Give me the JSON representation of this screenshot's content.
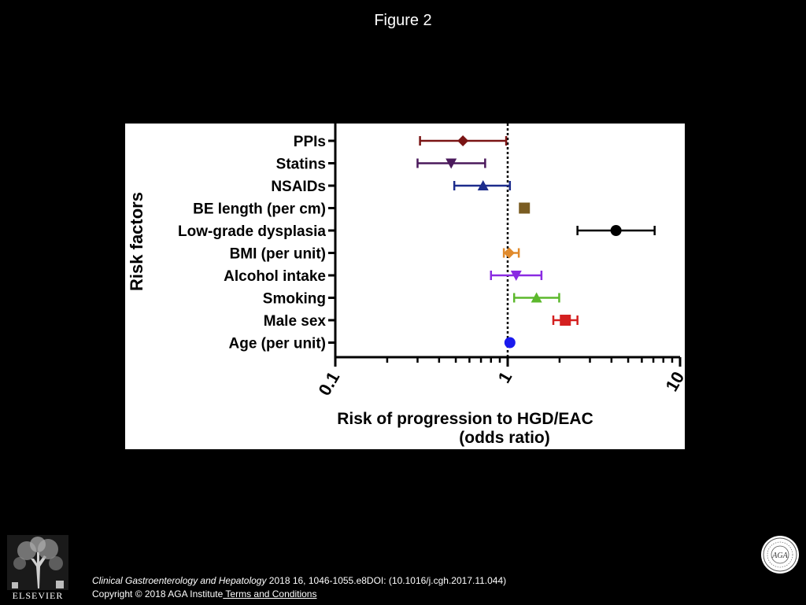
{
  "figure_title": "Figure 2",
  "chart_data": {
    "type": "forest",
    "ylabel": "Risk factors",
    "xlabel_line1": "Risk of progression to HGD/EAC",
    "xlabel_line2": "(odds ratio)",
    "xscale": "log",
    "xlim": [
      0.1,
      10
    ],
    "xticks": [
      {
        "value": 0.1,
        "label": "0.1"
      },
      {
        "value": 1,
        "label": "1"
      },
      {
        "value": 10,
        "label": "10"
      }
    ],
    "reference_line": 1,
    "rows": [
      {
        "label": "PPIs",
        "estimate": 0.55,
        "ci_low": 0.31,
        "ci_high": 0.98,
        "marker": "diamond",
        "color": "#7a1414"
      },
      {
        "label": "Statins",
        "estimate": 0.47,
        "ci_low": 0.3,
        "ci_high": 0.74,
        "marker": "triangle-down",
        "color": "#4b1a5c"
      },
      {
        "label": "NSAIDs",
        "estimate": 0.72,
        "ci_low": 0.49,
        "ci_high": 1.03,
        "marker": "triangle-up",
        "color": "#1c2c8c"
      },
      {
        "label": "BE length (per cm)",
        "estimate": 1.25,
        "ci_low": 1.18,
        "ci_high": 1.32,
        "marker": "square",
        "color": "#7a5c22"
      },
      {
        "label": "Low-grade dysplasia",
        "estimate": 4.25,
        "ci_low": 2.54,
        "ci_high": 7.12,
        "marker": "circle",
        "color": "#000000"
      },
      {
        "label": "BMI (per unit)",
        "estimate": 1.02,
        "ci_low": 0.95,
        "ci_high": 1.16,
        "marker": "diamond",
        "color": "#e08a2c"
      },
      {
        "label": "Alcohol intake",
        "estimate": 1.12,
        "ci_low": 0.8,
        "ci_high": 1.57,
        "marker": "triangle-down",
        "color": "#8a2be2"
      },
      {
        "label": "Smoking",
        "estimate": 1.47,
        "ci_low": 1.09,
        "ci_high": 1.99,
        "marker": "triangle-up",
        "color": "#5cb82c"
      },
      {
        "label": "Male sex",
        "estimate": 2.16,
        "ci_low": 1.84,
        "ci_high": 2.54,
        "marker": "square",
        "color": "#d42020"
      },
      {
        "label": "Age (per unit)",
        "estimate": 1.03,
        "ci_low": 1.01,
        "ci_high": 1.05,
        "marker": "circle",
        "color": "#1a1aee"
      }
    ]
  },
  "footer": {
    "publisher": "ELSEVIER",
    "journal": "Clinical Gastroenterology and Hepatology",
    "citation_rest": " 2018 16, 1046-1055.e8DOI: (10.1016/j.cgh.2017.11.044)",
    "copyright": "Copyright © 2018 AGA Institute",
    "terms_link": " Terms and Conditions",
    "seal_text": "AGA"
  }
}
